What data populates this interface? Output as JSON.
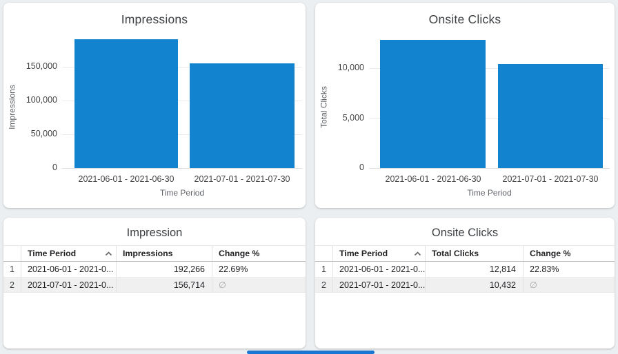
{
  "canvas": {
    "background": "#eceff1",
    "bar_color": "#1283ce",
    "scrollbar_color": "#1976d2",
    "null_symbol_color": "#a8a8a8"
  },
  "chart_data": [
    {
      "type": "bar",
      "panel": "top-left",
      "title": "Impressions",
      "xlabel": "Time Period",
      "ylabel": "Impressions",
      "categories": [
        "2021-06-01 - 2021-06-30",
        "2021-07-01 - 2021-07-30"
      ],
      "values": [
        192266,
        156714
      ],
      "y_ticks": [
        "150,000",
        "100,000",
        "50,000",
        "0"
      ],
      "ylim": [
        0,
        200000
      ],
      "grid": true,
      "legend": false,
      "bar_color": "#1283ce"
    },
    {
      "type": "bar",
      "panel": "top-right",
      "title": "Onsite Clicks",
      "xlabel": "Time Period",
      "ylabel": "Total Clicks",
      "categories": [
        "2021-06-01 - 2021-06-30",
        "2021-07-01 - 2021-07-30"
      ],
      "values": [
        12814,
        10432
      ],
      "y_ticks": [
        "10,000",
        "5,000",
        "0"
      ],
      "ylim": [
        0,
        13400
      ],
      "grid": true,
      "legend": false,
      "bar_color": "#1283ce"
    },
    {
      "type": "table",
      "panel": "bottom-left",
      "title": "Impression",
      "columns": [
        "",
        "Time Period",
        "Impressions",
        "Change %"
      ],
      "sort": {
        "column": "Time Period",
        "direction": "asc"
      },
      "rows": [
        [
          "1",
          "2021-06-01 - 2021-0...",
          "192,266",
          "22.69%"
        ],
        [
          "2",
          "2021-07-01 - 2021-0...",
          "156,714",
          "∅"
        ]
      ]
    },
    {
      "type": "table",
      "panel": "bottom-right",
      "title": "Onsite Clicks",
      "columns": [
        "",
        "Time Period",
        "Total Clicks",
        "Change %"
      ],
      "sort": {
        "column": "Time Period",
        "direction": "asc"
      },
      "rows": [
        [
          "1",
          "2021-06-01 - 2021-0...",
          "12,814",
          "22.83%"
        ],
        [
          "2",
          "2021-07-01 - 2021-0...",
          "10,432",
          "∅"
        ]
      ]
    }
  ]
}
